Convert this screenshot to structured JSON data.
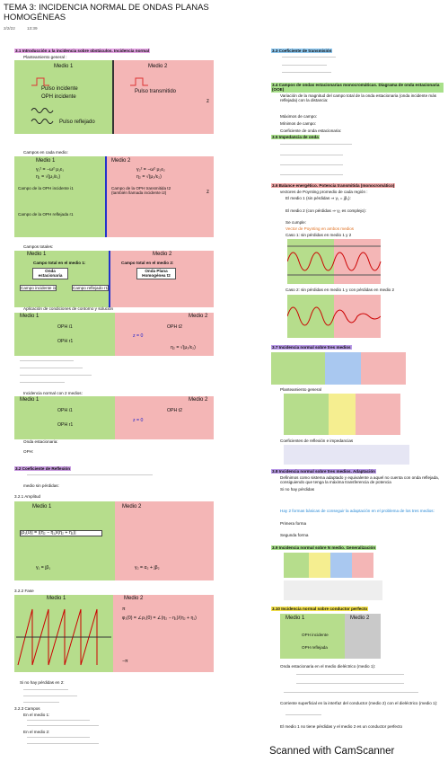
{
  "header": {
    "title": "TEMA 3: INCIDENCIA NORMAL DE ONDAS PLANAS HOMOGÉNEAS",
    "date": "2/2/22",
    "time": "13:39"
  },
  "left": {
    "s31": "3.1 Introducción a la incidencia sobre obstáculos. Incidencia normal",
    "planteamiento": "Planteamiento general :",
    "d1": {
      "medio1": "Medio 1",
      "medio2": "Medio 2",
      "pulso_incidente": "Pulso incidente",
      "oph_incidente": "OPH incidente",
      "pulso_transmitido": "Pulso transmitido",
      "pulso_reflejado": "Pulso reflejado",
      "z": "z"
    },
    "campos_medio": "Campos en cada medio:",
    "d2": {
      "medio1": "Medio 1",
      "medio2": "Medio 2",
      "eq1": "γ₁² = −ω² μ₁ε₁",
      "eq2": "η₁ = √(μ₁/ε₁)",
      "eq3": "γ₂² = −ω² μ₂ε₂",
      "eq4": "η₂ = √(μ₂/ε₂)",
      "inc": "Campo de la OPH incidente i1",
      "ref": "Campo de la OPH reflejada r1",
      "tra": "Campo de la OPH transmitida t2 (también llamada incidente i2)",
      "z": "z"
    },
    "campos_totales": "Campos totales:",
    "d3": {
      "medio1": "Medio 1",
      "medio2": "Medio 2",
      "total1": "Campo total en el medio 1:",
      "total2": "Campo total en el medio 2:",
      "estacionaria": "Onda estacionaria",
      "oph2": "Onda Plana Homogénea t2",
      "ci": "Campo incidente i1",
      "cr": "Campo reflejado r1"
    },
    "contorno": "Aplicación de condiciones de contorno y solución",
    "d4": {
      "medio1": "Medio 1",
      "medio2": "Medio 2",
      "ophi": "OPH i1",
      "opht": "OPH t2",
      "ophr": "OPH r1",
      "z0": "z = 0",
      "eta": "η₂ = √(μ₂/ε₂)"
    },
    "dos_medios": "Incidencia normal con 2 medios:",
    "d5": {
      "medio1": "Medio 1",
      "medio2": "Medio 2",
      "ophi": "OPH i1",
      "opht": "OPH t2",
      "ophr": "OPH r1",
      "z0": "z = 0"
    },
    "onda_est": "Onda estacionaria:",
    "oph": "OPH:",
    "s32": "3.2 Coeficiente de Reflexión",
    "sin_perdidas": "medio sin pérdidas:",
    "s321": "3.2.1 Amplitud",
    "d6": {
      "medio1": "Medio 1",
      "medio2": "Medio 2",
      "rho": "|ρ₁(0)| = |(η₂ − η₁)/(η₂ + η₁)|",
      "gamma1": "γ₁ = jβ₁",
      "gamma2": "γ₂ = α₂ + jβ₂"
    },
    "s322": "3.2.2 Fase",
    "d7": {
      "medio1": "Medio 1",
      "medio2": "Medio 2",
      "phase": "φ₁(0) = ∠ρ₁(0) = ∠(η₂ − η₁)/(η₂ + η₁)",
      "pi": "π",
      "mpi": "−π"
    },
    "si_no_perdidas": "Si no hay pérdidas en 2:",
    "s323": "3.2.3 Campos",
    "en_medio1": "En el medio 1:",
    "en_medio2": "En el medio 2:"
  },
  "right": {
    "s33": "3.3 Coeficiente de transmisión",
    "s34": "3.4 Campos de ondas estacionarias monocromáticas. Diagrama de onda estacionaria (OOE)",
    "variacion": "Variación de la magnitud del campo total de la onda estacionaria (onda incidente más reflejada) con la distancia:",
    "maximos": "Máximos de campo:",
    "minimos": "Mínimos de campo:",
    "coef": "Coeficiente de onda estacionaria:",
    "s35": "3.5 Impedancia de onda",
    "s36": "3.6 Balance energético. Potencia transmitida (monocromático)",
    "poynting": "vectores de Poynting promedio de cada región :",
    "medio1_sp": "El medio 1 (sin pérdidas ⇒ γ₁ = jβ₁):",
    "medio2_cp": "El medio 2 (con pérdidas ⇒ γ₂ es complejo):",
    "cumple": "Se cumple:",
    "vector": "Vector de Poynting en ambos medios",
    "caso1": "Caso 1: sin pérdidas en medio 1 y 2",
    "caso2": "Caso 2: sin pérdidas en medio 1 y con pérdidas en medio 2",
    "s37": "3.7 Incidencia normal sobre tres medios",
    "plant": "Planteamiento general",
    "coefs": "Coeficientes de reflexión e impedancias",
    "s38": "3.8 Incidencia normal sobre tres medios. Adaptación",
    "definimos": "Definimos como sistema adaptado y equivalente a aquel no cuenta con onda reflejada, consiguiendo que tenga la máxima transferencia de potencia",
    "si_no": "Si no hay pérdidas",
    "formas": "Hay 2 formas básicas de conseguir la adaptación en el problema de los tres medios:",
    "primera": "Primera forma",
    "segunda": "Segunda forma",
    "s39": "3.9 Incidencia normal sobre N medio. Generalización",
    "s310": "3.10 Incidencia normal sobre conductor perfecto",
    "d10": {
      "medio1": "Medio 1",
      "medio2": "Medio 2",
      "ophi": "OPH incidente",
      "ophr": "OPH reflejada"
    },
    "estacionaria": "Onda estacionaria en el medio dieléctrico (medio 1):",
    "corriente": "Corriente superficial en la interfaz del conductor (medio 2) con el dieléctrico (medio 1):",
    "nota": "El medio 1 no tiene pérdidas y el medio 2 es un conductor perfecto"
  },
  "footer": "Scanned with CamScanner"
}
